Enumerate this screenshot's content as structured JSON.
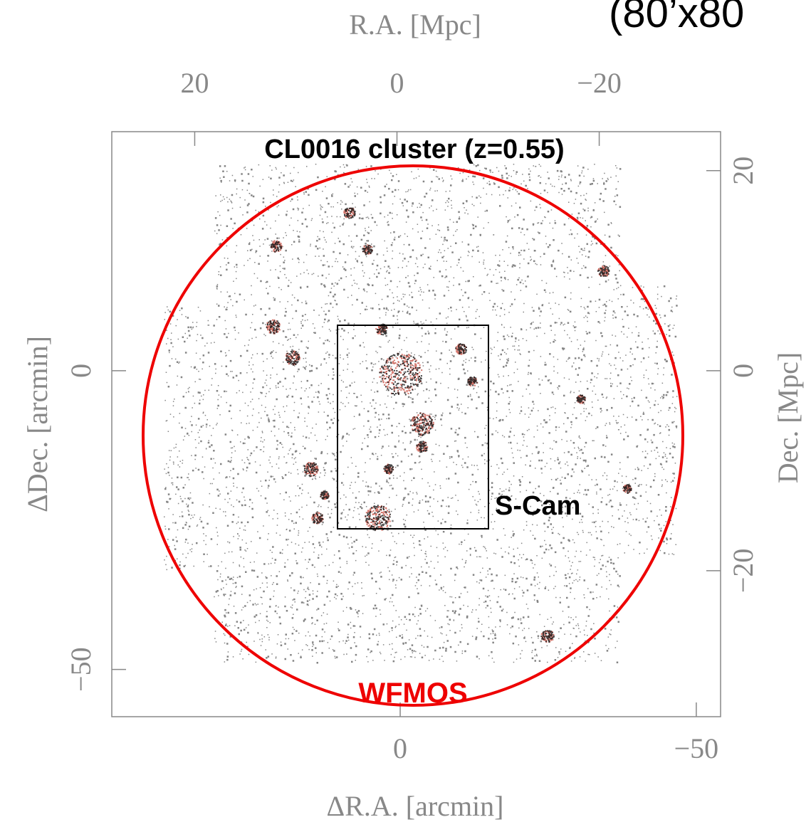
{
  "chart_data": {
    "type": "sky-map",
    "title": "(80’x80",
    "annotations": {
      "cluster": "CL0016 cluster (z=0.55)",
      "scam": "S-Cam",
      "wfmos": "WFMOS"
    },
    "xlabel": "ΔR.A. [arcmin]",
    "ylabel": "ΔDec. [arcmin]",
    "x2label": "R.A. [Mpc]",
    "y2label": "Dec. [Mpc]",
    "xlim": [
      48.7,
      -54.1
    ],
    "ylim": [
      -57.9,
      40
    ],
    "xticks": [
      0,
      {
        "value": -50,
        "label": "−50"
      }
    ],
    "yticks": [
      0,
      {
        "value": -50,
        "label": "−50"
      }
    ],
    "x2lim": [
      28.2,
      -32.0
    ],
    "x2ticks": [
      20,
      0,
      {
        "value": -20,
        "label": "−20"
      }
    ],
    "y2lim": [
      -34.6,
      23.9
    ],
    "y2ticks": [
      20,
      0,
      {
        "value": -20,
        "label": "−20"
      }
    ]
  }
}
